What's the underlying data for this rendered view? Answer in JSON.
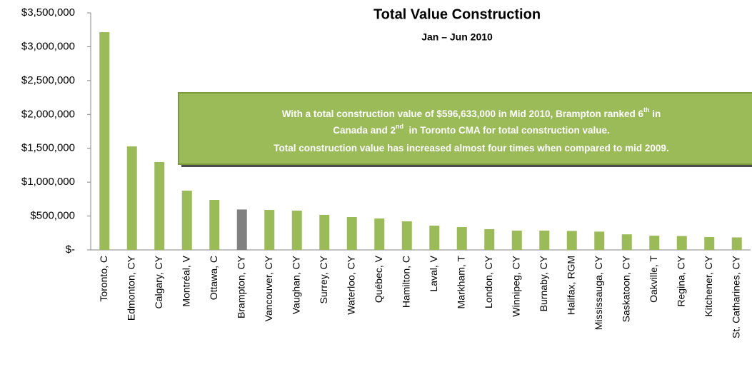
{
  "chart_data": {
    "type": "bar",
    "title": "Total Value Construction",
    "subtitle": "Jan – Jun 2010",
    "categories": [
      "Toronto, C",
      "Edmonton, CY",
      "Calgary, CY",
      "Montréal, V",
      "Ottawa, C",
      "Brampton, CY",
      "Vancouver, CY",
      "Vaughan, CY",
      "Surrey, CY",
      "Waterloo, CY",
      "Québec, V",
      "Hamilton, C",
      "Laval, V",
      "Markham, T",
      "London, CY",
      "Winnipeg, CY",
      "Burnaby, CY",
      "Halifax, RGM",
      "Mississauga, CY",
      "Saskatoon, CY",
      "Oakville, T",
      "Regina, CY",
      "Kitchener, CY",
      "St. Catharines, CY"
    ],
    "values": [
      3215000,
      1528000,
      1297000,
      875000,
      738000,
      596633,
      590000,
      580000,
      517000,
      485000,
      464000,
      422000,
      358000,
      337000,
      306000,
      285000,
      285000,
      280000,
      270000,
      230000,
      210000,
      205000,
      190000,
      185000
    ],
    "colors": [
      "#9bbb59",
      "#9bbb59",
      "#9bbb59",
      "#9bbb59",
      "#9bbb59",
      "#808080",
      "#9bbb59",
      "#9bbb59",
      "#9bbb59",
      "#9bbb59",
      "#9bbb59",
      "#9bbb59",
      "#9bbb59",
      "#9bbb59",
      "#9bbb59",
      "#9bbb59",
      "#9bbb59",
      "#9bbb59",
      "#9bbb59",
      "#9bbb59",
      "#9bbb59",
      "#9bbb59",
      "#9bbb59",
      "#9bbb59"
    ],
    "ylim": [
      0,
      3500000
    ],
    "yticks": [
      {
        "value": 0,
        "label": "$-"
      },
      {
        "value": 500000,
        "label": "$500,000"
      },
      {
        "value": 1000000,
        "label": "$1,000,000"
      },
      {
        "value": 1500000,
        "label": "$1,500,000"
      },
      {
        "value": 2000000,
        "label": "$2,000,000"
      },
      {
        "value": 2500000,
        "label": "$2,500,000"
      },
      {
        "value": 3000000,
        "label": "$3,000,000"
      },
      {
        "value": 3500000,
        "label": "$3,500,000"
      }
    ],
    "grid": false,
    "annotation": {
      "lines": [
        [
          "With a total construction value of $596,633,000 in Mid 2010, Brampton ranked 6",
          "th",
          " in"
        ],
        [
          "Canada and 2",
          "nd",
          "  in Toronto CMA for total construction value."
        ],
        [
          "Total construction value has increased almost four times when compared to mid 2009."
        ]
      ]
    }
  }
}
